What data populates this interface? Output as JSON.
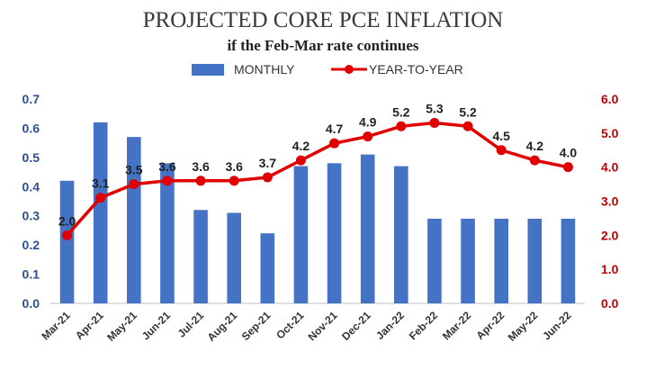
{
  "chart_data": {
    "type": "bar+line",
    "title": "PROJECTED CORE PCE INFLATION",
    "subtitle": "if the Feb-Mar rate continues",
    "categories": [
      "Mar-21",
      "Apr-21",
      "May-21",
      "Jun-21",
      "Jul-21",
      "Aug-21",
      "Sep-21",
      "Oct-21",
      "Nov-21",
      "Dec-21",
      "Jan-22",
      "Feb-22",
      "Mar-22",
      "Apr-22",
      "May-22",
      "Jun-22"
    ],
    "series": [
      {
        "name": "MONTHLY",
        "type": "bar",
        "axis": "left",
        "color": "#4472c4",
        "values": [
          0.42,
          0.62,
          0.57,
          0.48,
          0.32,
          0.31,
          0.24,
          0.47,
          0.48,
          0.51,
          0.47,
          0.29,
          0.29,
          0.29,
          0.29,
          0.29
        ]
      },
      {
        "name": "YEAR-TO-YEAR",
        "type": "line",
        "axis": "right",
        "color": "#e00000",
        "values": [
          2.0,
          3.1,
          3.5,
          3.6,
          3.6,
          3.6,
          3.7,
          4.2,
          4.7,
          4.9,
          5.2,
          5.3,
          5.2,
          4.5,
          4.2,
          4.0
        ],
        "labels": [
          "2.0",
          "3.1",
          "3.5",
          "3.6",
          "3.6",
          "3.6",
          "3.7",
          "4.2",
          "4.7",
          "4.9",
          "5.2",
          "5.3",
          "5.2",
          "4.5",
          "4.2",
          "4.0"
        ]
      }
    ],
    "y_left": {
      "ylim": [
        0,
        0.7
      ],
      "ticks": [
        "0.0",
        "0.1",
        "0.2",
        "0.3",
        "0.4",
        "0.5",
        "0.6",
        "0.7"
      ]
    },
    "y_right": {
      "ylim": [
        0,
        6.0
      ],
      "ticks": [
        "0.0",
        "1.0",
        "2.0",
        "3.0",
        "4.0",
        "5.0",
        "6.0"
      ]
    },
    "legend": {
      "placement": "top-center",
      "items": [
        "MONTHLY",
        "YEAR-TO-YEAR"
      ]
    },
    "grid": false
  }
}
